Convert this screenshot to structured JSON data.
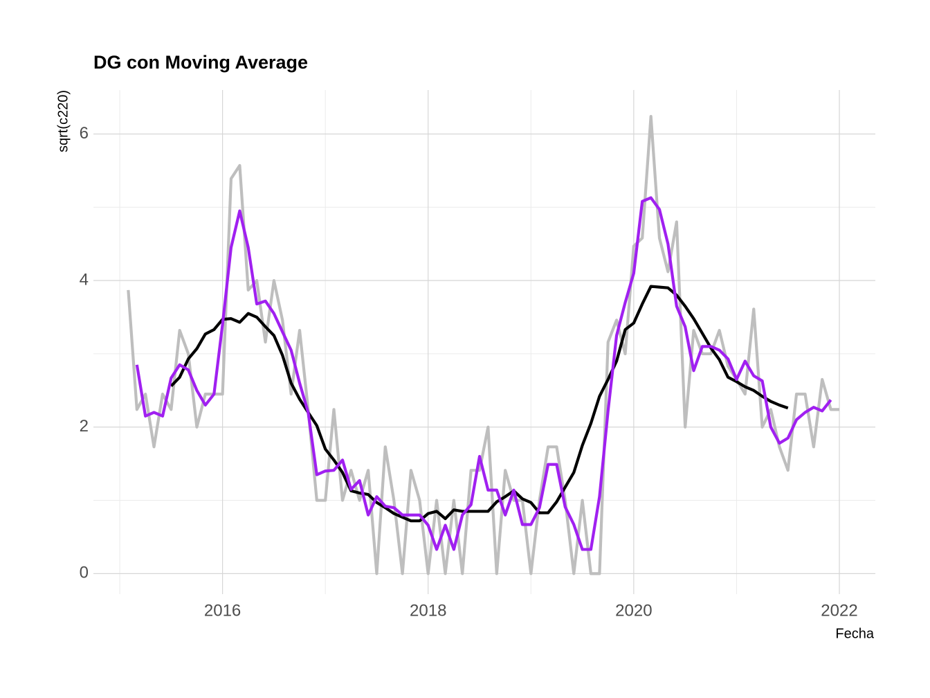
{
  "chart_data": {
    "type": "line",
    "title": "DG con Moving Average",
    "x_label": "Fecha",
    "y_label": "sqrt(c220)",
    "x": [
      2015.083,
      2015.167,
      2015.25,
      2015.333,
      2015.417,
      2015.5,
      2015.583,
      2015.667,
      2015.75,
      2015.833,
      2015.917,
      2016,
      2016.083,
      2016.167,
      2016.25,
      2016.333,
      2016.417,
      2016.5,
      2016.583,
      2016.667,
      2016.75,
      2016.833,
      2016.917,
      2017,
      2017.083,
      2017.167,
      2017.25,
      2017.333,
      2017.417,
      2017.5,
      2017.583,
      2017.667,
      2017.75,
      2017.833,
      2017.917,
      2018,
      2018.083,
      2018.167,
      2018.25,
      2018.333,
      2018.417,
      2018.5,
      2018.583,
      2018.667,
      2018.75,
      2018.833,
      2018.917,
      2019,
      2019.083,
      2019.167,
      2019.25,
      2019.333,
      2019.417,
      2019.5,
      2019.583,
      2019.667,
      2019.75,
      2019.833,
      2019.917,
      2020,
      2020.083,
      2020.167,
      2020.25,
      2020.333,
      2020.417,
      2020.5,
      2020.583,
      2020.667,
      2020.75,
      2020.833,
      2020.917,
      2021,
      2021.083,
      2021.167,
      2021.25,
      2021.333,
      2021.417,
      2021.5,
      2021.583,
      2021.667,
      2021.75,
      2021.833,
      2021.917,
      2022
    ],
    "series": [
      {
        "color": "#bebebe",
        "values": [
          3.87,
          2.24,
          2.45,
          1.73,
          2.45,
          2.24,
          3.32,
          3.0,
          2.0,
          2.45,
          2.45,
          2.45,
          5.39,
          5.57,
          3.87,
          4.0,
          3.16,
          4.0,
          3.46,
          2.45,
          3.32,
          2.24,
          1.0,
          1.0,
          2.24,
          1.0,
          1.41,
          1.0,
          1.41,
          0,
          1.73,
          1.0,
          0,
          1.41,
          1.0,
          0,
          1.0,
          0,
          1.0,
          0,
          1.41,
          1.41,
          2.0,
          0,
          1.41,
          1.0,
          1.0,
          0,
          1.0,
          1.73,
          1.73,
          1.0,
          0,
          1.0,
          0,
          0,
          3.16,
          3.46,
          3.0,
          4.47,
          4.58,
          6.24,
          4.58,
          4.12,
          4.8,
          2.0,
          3.32,
          3.0,
          3.0,
          3.32,
          2.83,
          2.65,
          2.45,
          3.61,
          2.0,
          2.24,
          1.73,
          1.41,
          2.45,
          2.45,
          1.73,
          2.65,
          2.24,
          2.24
        ]
      },
      {
        "color": "#000000",
        "values": [
          null,
          null,
          null,
          null,
          null,
          2.56,
          2.68,
          2.93,
          3.07,
          3.27,
          3.33,
          3.47,
          3.48,
          3.43,
          3.55,
          3.5,
          3.37,
          3.25,
          2.98,
          2.6,
          2.38,
          2.2,
          2.02,
          1.7,
          1.55,
          1.38,
          1.13,
          1.1,
          1.08,
          0.97,
          0.9,
          0.82,
          0.77,
          0.72,
          0.72,
          0.82,
          0.85,
          0.75,
          0.87,
          0.85,
          0.85,
          0.85,
          0.85,
          0.98,
          1.05,
          1.13,
          1.02,
          0.97,
          0.83,
          0.83,
          0.98,
          1.18,
          1.38,
          1.75,
          2.05,
          2.42,
          2.65,
          2.9,
          3.33,
          3.42,
          3.68,
          3.92,
          3.91,
          3.9,
          3.8,
          3.65,
          3.48,
          3.28,
          3.08,
          2.92,
          2.68,
          2.62,
          2.55,
          2.5,
          2.42,
          2.35,
          2.3,
          2.26,
          null,
          null,
          null,
          null,
          null,
          null
        ]
      },
      {
        "color": "#a020f0",
        "values": [
          null,
          2.85,
          2.15,
          2.2,
          2.15,
          2.67,
          2.85,
          2.78,
          2.5,
          2.3,
          2.45,
          3.4,
          4.45,
          4.95,
          4.45,
          3.68,
          3.72,
          3.55,
          3.3,
          3.05,
          2.6,
          2.2,
          1.35,
          1.4,
          1.41,
          1.55,
          1.15,
          1.27,
          0.8,
          1.05,
          0.92,
          0.9,
          0.8,
          0.8,
          0.8,
          0.66,
          0.33,
          0.66,
          0.33,
          0.8,
          0.94,
          1.6,
          1.14,
          1.14,
          0.8,
          1.14,
          0.67,
          0.67,
          0.9,
          1.49,
          1.49,
          0.91,
          0.67,
          0.33,
          0.33,
          1.05,
          2.22,
          3.25,
          3.7,
          4.1,
          5.08,
          5.13,
          4.97,
          4.5,
          3.65,
          3.37,
          2.77,
          3.1,
          3.1,
          3.05,
          2.93,
          2.65,
          2.9,
          2.7,
          2.63,
          2.0,
          1.78,
          1.85,
          2.1,
          2.2,
          2.27,
          2.22,
          2.37,
          null
        ]
      }
    ],
    "xlim": [
      2014.744,
      2022.35
    ],
    "xticks": [
      2016,
      2018,
      2020,
      2022
    ],
    "minor_xticks": [
      2015,
      2017,
      2019,
      2021
    ],
    "ylim": [
      -0.28,
      6.6
    ],
    "yticks": [
      0,
      2,
      4,
      6
    ],
    "minor_yticks": [
      1,
      3,
      5
    ],
    "grid": true
  }
}
